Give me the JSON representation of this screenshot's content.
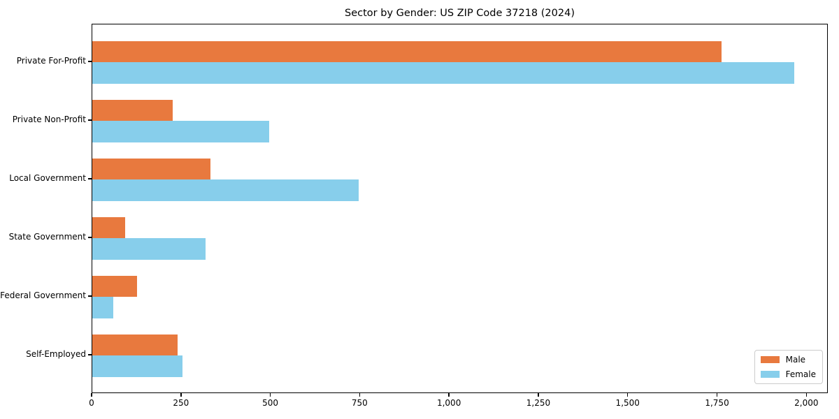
{
  "chart_data": {
    "type": "bar",
    "orientation": "horizontal",
    "title": "Sector by Gender: US ZIP Code 37218 (2024)",
    "categories": [
      "Private For-Profit",
      "Private Non-Profit",
      "Local Government",
      "State Government",
      "Federal Government",
      "Self-Employed"
    ],
    "series": [
      {
        "name": "Male",
        "color": "#e8793e",
        "values": [
          1760,
          224,
          330,
          92,
          126,
          239
        ]
      },
      {
        "name": "Female",
        "color": "#87ceeb",
        "values": [
          1965,
          495,
          746,
          317,
          59,
          253
        ]
      }
    ],
    "xticks": [
      0,
      250,
      500,
      750,
      1000,
      1250,
      1500,
      1750,
      2000
    ],
    "xtick_labels": [
      "0",
      "250",
      "500",
      "750",
      "1,000",
      "1,250",
      "1,500",
      "1,750",
      "2,000"
    ],
    "xlim": [
      0,
      2060
    ],
    "xlabel": "",
    "ylabel": "",
    "grid": false,
    "legend_position": "lower right"
  },
  "colors": {
    "spine": "#000000",
    "background": "#ffffff"
  }
}
